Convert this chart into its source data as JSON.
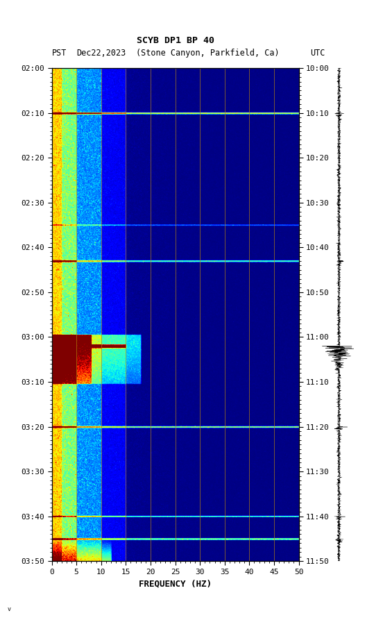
{
  "title_line1": "SCYB DP1 BP 40",
  "title_line2_left": "PST",
  "title_line2_date": "Dec22,2023",
  "title_line2_loc": "(Stone Canyon, Parkfield, Ca)",
  "title_line2_right": "UTC",
  "xlabel": "FREQUENCY (HZ)",
  "freq_min": 0,
  "freq_max": 50,
  "left_time_labels": [
    "02:00",
    "02:10",
    "02:20",
    "02:30",
    "02:40",
    "02:50",
    "03:00",
    "03:10",
    "03:20",
    "03:30",
    "03:40",
    "03:50"
  ],
  "right_time_labels": [
    "10:00",
    "10:10",
    "10:20",
    "10:30",
    "10:40",
    "10:50",
    "11:00",
    "11:10",
    "11:20",
    "11:30",
    "11:40",
    "11:50"
  ],
  "freq_ticks": [
    0,
    5,
    10,
    15,
    20,
    25,
    30,
    35,
    40,
    45,
    50
  ],
  "vertical_lines_freq": [
    5,
    10,
    15,
    20,
    25,
    30,
    35,
    40,
    45
  ],
  "bg_color": "#ffffff",
  "spectrogram_cmap": "jet",
  "vline_color": "#b8860b",
  "fig_width": 5.52,
  "fig_height": 8.93,
  "n_time": 1100,
  "n_freq": 500
}
